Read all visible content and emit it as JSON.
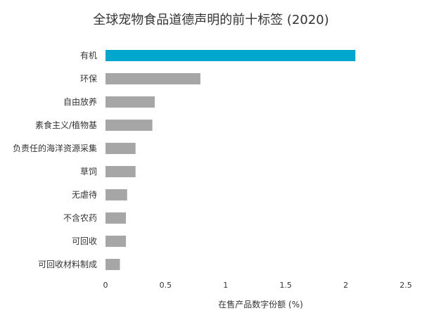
{
  "chart_data": {
    "type": "bar",
    "orientation": "horizontal",
    "title": "全球宠物食品道德声明的前十标签 (2020)",
    "xlabel": "在售产品数字份额 (%)",
    "ylabel": "",
    "categories": [
      "有机",
      "环保",
      "自由放养",
      "素食主义/植物基",
      "负责任的海洋资源采集",
      "草饲",
      "无虐待",
      "不含农药",
      "可回收",
      "可回收材料制成"
    ],
    "values": [
      2.08,
      0.79,
      0.41,
      0.39,
      0.25,
      0.25,
      0.18,
      0.17,
      0.17,
      0.12
    ],
    "xlim": [
      0,
      2.5
    ],
    "xticks": [
      "0",
      "0.5",
      "1",
      "1.5",
      "2",
      "2.5"
    ],
    "grid": false,
    "legend": "none",
    "colors": {
      "highlight": "#00A6CC",
      "default": "#A6A6A6"
    }
  }
}
